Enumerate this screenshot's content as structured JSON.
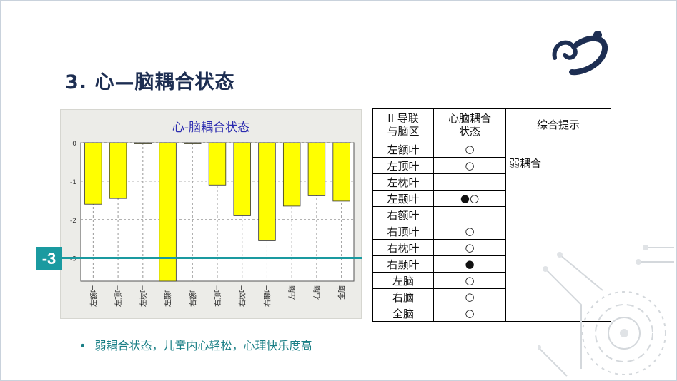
{
  "slide": {
    "title": "3. 心—脑耦合状态",
    "marker_label": "-3",
    "bullet": "弱耦合状态，儿童内心轻松，心理快乐度高"
  },
  "chart_data": {
    "type": "bar",
    "title": "心-脑耦合状态",
    "categories": [
      "左额叶",
      "左顶叶",
      "左枕叶",
      "左颞叶",
      "右额叶",
      "右顶叶",
      "右枕叶",
      "右颞叶",
      "左脑",
      "右脑",
      "全脑"
    ],
    "values": [
      -1.6,
      -1.45,
      -0.02,
      -3.7,
      -0.02,
      -1.1,
      -1.9,
      -2.55,
      -1.65,
      -1.38,
      -1.52
    ],
    "yticks": [
      "0",
      "-1",
      "-2",
      "-3"
    ],
    "ylim": [
      -3.6,
      0
    ],
    "grid": true,
    "bar_color": "#ffff00"
  },
  "table": {
    "headers": [
      "II 导联\n与脑区",
      "心脑耦合\n状态",
      "综合提示"
    ],
    "rows": [
      {
        "region": "左额叶",
        "state": "○"
      },
      {
        "region": "左顶叶",
        "state": "○"
      },
      {
        "region": "左枕叶",
        "state": ""
      },
      {
        "region": "左颞叶",
        "state": "●○"
      },
      {
        "region": "右额叶",
        "state": ""
      },
      {
        "region": "右顶叶",
        "state": "○"
      },
      {
        "region": "右枕叶",
        "state": "○"
      },
      {
        "region": "右颞叶",
        "state": "●"
      },
      {
        "region": "左脑",
        "state": "○"
      },
      {
        "region": "右脑",
        "state": "○"
      },
      {
        "region": "全脑",
        "state": "○"
      }
    ],
    "summary": "弱耦合"
  },
  "colors": {
    "title": "#1d2e52",
    "accent": "#1a9aa0",
    "bar": "#ffff00"
  }
}
